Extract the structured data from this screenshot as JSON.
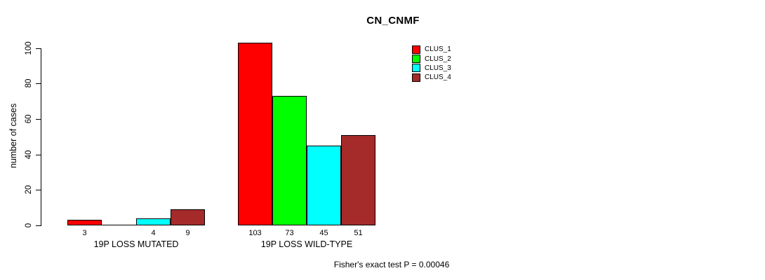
{
  "chart_data": {
    "type": "bar",
    "title": "CN_CNMF",
    "ylabel": "number of cases",
    "xlabel": "",
    "ylim": [
      0,
      103
    ],
    "yticks": [
      0,
      20,
      40,
      60,
      80,
      100
    ],
    "grid": false,
    "legend_position": "top-right",
    "categories": [
      "19P LOSS MUTATED",
      "19P LOSS WILD-TYPE"
    ],
    "series": [
      {
        "name": "CLUS_1",
        "color": "#ff0000",
        "values": [
          3,
          103
        ]
      },
      {
        "name": "CLUS_2",
        "color": "#00ff00",
        "values": [
          0,
          73
        ]
      },
      {
        "name": "CLUS_3",
        "color": "#00ffff",
        "values": [
          4,
          45
        ]
      },
      {
        "name": "CLUS_4",
        "color": "#a52a2a",
        "values": [
          9,
          51
        ]
      }
    ],
    "bar_value_labels": [
      [
        "3",
        "",
        "4",
        "9"
      ],
      [
        "103",
        "73",
        "45",
        "51"
      ]
    ],
    "annotation": "Fisher's exact test P = 0.00046"
  }
}
